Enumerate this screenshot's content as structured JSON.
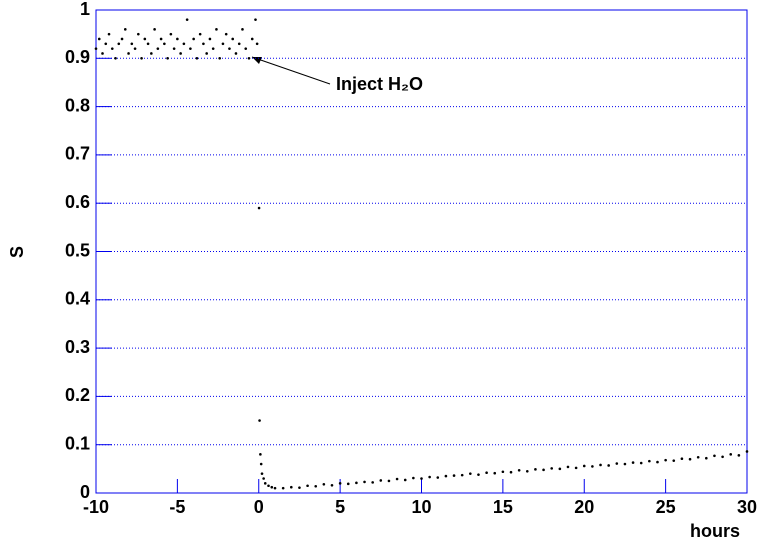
{
  "chart_data": {
    "type": "scatter",
    "xlabel": "hours",
    "ylabel": "S",
    "annotation": "Inject H₂O",
    "color": "#000000",
    "grid": true,
    "xlim": [
      -10,
      30
    ],
    "xticks": [
      -10,
      -5,
      0,
      5,
      10,
      15,
      20,
      25,
      30
    ],
    "ylim": [
      0,
      1
    ],
    "yticks": [
      0,
      0.1,
      0.2,
      0.3,
      0.4,
      0.5,
      0.6,
      0.7,
      0.8,
      0.9,
      1
    ],
    "x": [
      -10,
      -9.8,
      -9.6,
      -9.4,
      -9.2,
      -9,
      -8.8,
      -8.6,
      -8.4,
      -8.2,
      -8,
      -7.8,
      -7.6,
      -7.4,
      -7.2,
      -7,
      -6.8,
      -6.6,
      -6.4,
      -6.2,
      -6,
      -5.8,
      -5.6,
      -5.4,
      -5.2,
      -5,
      -4.8,
      -4.6,
      -4.4,
      -4.2,
      -4,
      -3.8,
      -3.6,
      -3.4,
      -3.2,
      -3,
      -2.8,
      -2.6,
      -2.4,
      -2.2,
      -2,
      -1.8,
      -1.6,
      -1.4,
      -1.2,
      -1,
      -0.8,
      -0.6,
      -0.4,
      -0.2,
      -0.1,
      0.02,
      0.05,
      0.1,
      0.15,
      0.2,
      0.3,
      0.4,
      0.6,
      0.8,
      1,
      1.5,
      2,
      2.5,
      3,
      3.5,
      4,
      4.5,
      5,
      5.5,
      6,
      6.5,
      7,
      7.5,
      8,
      8.5,
      9,
      9.5,
      10,
      10.5,
      11,
      11.5,
      12,
      12.5,
      13,
      13.5,
      14,
      14.5,
      15,
      15.5,
      16,
      16.5,
      17,
      17.5,
      18,
      18.5,
      19,
      19.5,
      20,
      20.5,
      21,
      21.5,
      22,
      22.5,
      23,
      23.5,
      24,
      24.5,
      25,
      25.5,
      26,
      26.5,
      27,
      27.5,
      28,
      28.5,
      29,
      29.5,
      30
    ],
    "values": [
      0.92,
      0.94,
      0.91,
      0.93,
      0.95,
      0.92,
      0.9,
      0.93,
      0.94,
      0.96,
      0.91,
      0.93,
      0.92,
      0.95,
      0.9,
      0.94,
      0.93,
      0.91,
      0.96,
      0.92,
      0.94,
      0.93,
      0.9,
      0.95,
      0.92,
      0.94,
      0.91,
      0.93,
      0.98,
      0.92,
      0.94,
      0.9,
      0.95,
      0.93,
      0.91,
      0.94,
      0.92,
      0.96,
      0.9,
      0.93,
      0.95,
      0.92,
      0.94,
      0.91,
      0.93,
      0.96,
      0.92,
      0.9,
      0.94,
      0.98,
      0.93,
      0.59,
      0.15,
      0.08,
      0.06,
      0.04,
      0.03,
      0.02,
      0.015,
      0.012,
      0.01,
      0.01,
      0.012,
      0.011,
      0.015,
      0.014,
      0.018,
      0.016,
      0.02,
      0.019,
      0.021,
      0.023,
      0.022,
      0.026,
      0.025,
      0.029,
      0.027,
      0.031,
      0.03,
      0.033,
      0.032,
      0.035,
      0.036,
      0.037,
      0.04,
      0.038,
      0.042,
      0.041,
      0.044,
      0.043,
      0.047,
      0.045,
      0.049,
      0.048,
      0.051,
      0.05,
      0.054,
      0.052,
      0.056,
      0.055,
      0.058,
      0.057,
      0.061,
      0.06,
      0.063,
      0.062,
      0.066,
      0.064,
      0.068,
      0.067,
      0.071,
      0.07,
      0.074,
      0.072,
      0.077,
      0.075,
      0.08,
      0.078,
      0.086
    ]
  }
}
